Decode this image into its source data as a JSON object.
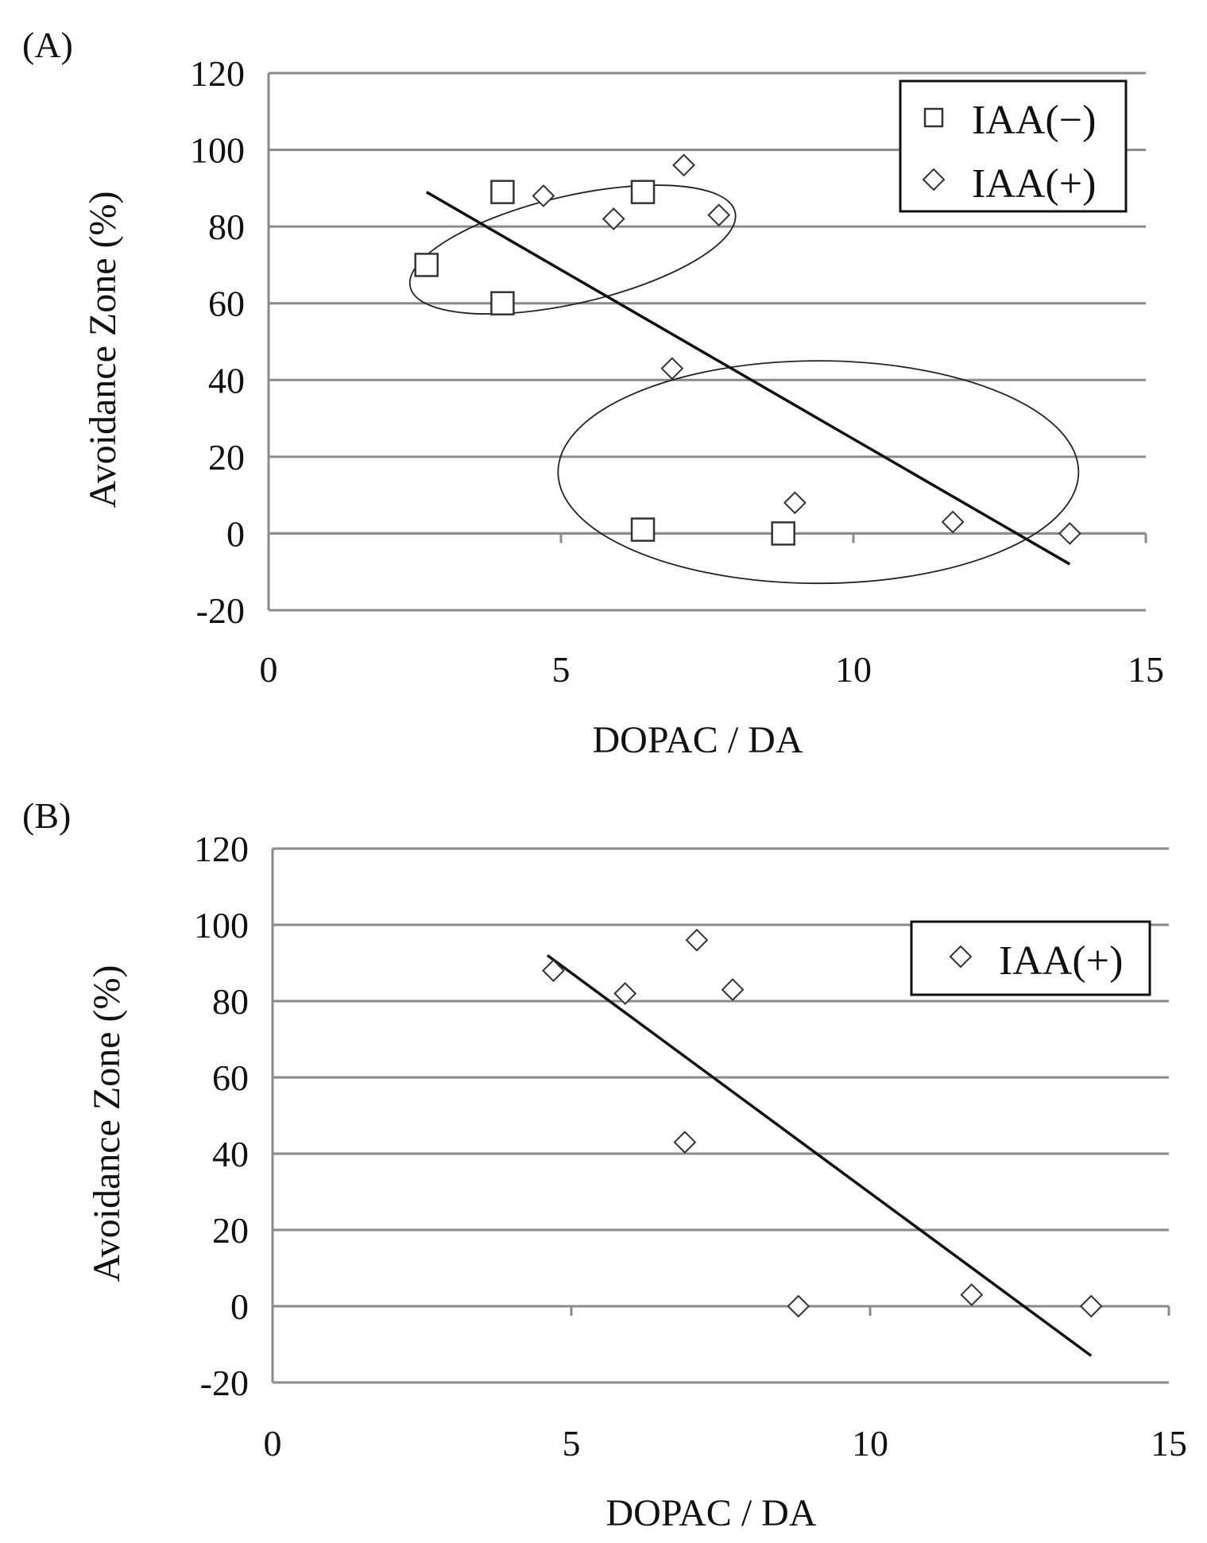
{
  "chart_data": [
    {
      "type": "scatter",
      "panel_label": "(A)",
      "xlabel": "DOPAC / DA",
      "ylabel": "Avoidance Zone (%)",
      "xlim": [
        0,
        15
      ],
      "ylim": [
        -20,
        120
      ],
      "x_ticks": [
        "0",
        "5",
        "10",
        "15"
      ],
      "y_ticks": [
        "-20",
        "0",
        "20",
        "40",
        "60",
        "80",
        "100",
        "120"
      ],
      "grid": "horizontal",
      "legend_position": "top-right",
      "series": [
        {
          "name": "IAA(−)",
          "marker": "square",
          "points": [
            {
              "x": 2.7,
              "y": 70
            },
            {
              "x": 4.0,
              "y": 89
            },
            {
              "x": 4.0,
              "y": 60
            },
            {
              "x": 6.4,
              "y": 89
            },
            {
              "x": 6.4,
              "y": 1
            },
            {
              "x": 8.8,
              "y": 0
            }
          ]
        },
        {
          "name": "IAA(+)",
          "marker": "diamond",
          "points": [
            {
              "x": 4.7,
              "y": 88
            },
            {
              "x": 5.9,
              "y": 82
            },
            {
              "x": 7.1,
              "y": 96
            },
            {
              "x": 7.7,
              "y": 83
            },
            {
              "x": 6.9,
              "y": 43
            },
            {
              "x": 9.0,
              "y": 8
            },
            {
              "x": 11.7,
              "y": 3
            },
            {
              "x": 13.7,
              "y": 0
            }
          ]
        }
      ],
      "trendline": {
        "x1": 2.7,
        "y1": 89,
        "x2": 13.7,
        "y2": -8
      },
      "annotations": [
        {
          "type": "ellipse",
          "cx": 5.2,
          "cy": 74,
          "rx": 2.85,
          "ry": 14,
          "rotate": -13
        },
        {
          "type": "ellipse",
          "cx": 9.4,
          "cy": 16,
          "rx": 4.45,
          "ry": 29,
          "rotate": 0
        }
      ]
    },
    {
      "type": "scatter",
      "panel_label": "(B)",
      "xlabel": "DOPAC / DA",
      "ylabel": "Avoidance Zone (%)",
      "xlim": [
        0,
        15
      ],
      "ylim": [
        -20,
        120
      ],
      "x_ticks": [
        "0",
        "5",
        "10",
        "15"
      ],
      "y_ticks": [
        "-20",
        "0",
        "20",
        "40",
        "60",
        "80",
        "100",
        "120"
      ],
      "grid": "horizontal",
      "legend_position": "top-right",
      "series": [
        {
          "name": "IAA(+)",
          "marker": "diamond",
          "points": [
            {
              "x": 4.7,
              "y": 88
            },
            {
              "x": 5.9,
              "y": 82
            },
            {
              "x": 7.1,
              "y": 96
            },
            {
              "x": 7.7,
              "y": 83
            },
            {
              "x": 6.9,
              "y": 43
            },
            {
              "x": 8.8,
              "y": 0
            },
            {
              "x": 11.7,
              "y": 3
            },
            {
              "x": 13.7,
              "y": 0
            }
          ]
        }
      ],
      "trendline": {
        "x1": 4.6,
        "y1": 92,
        "x2": 13.7,
        "y2": -13
      },
      "annotations": []
    }
  ]
}
